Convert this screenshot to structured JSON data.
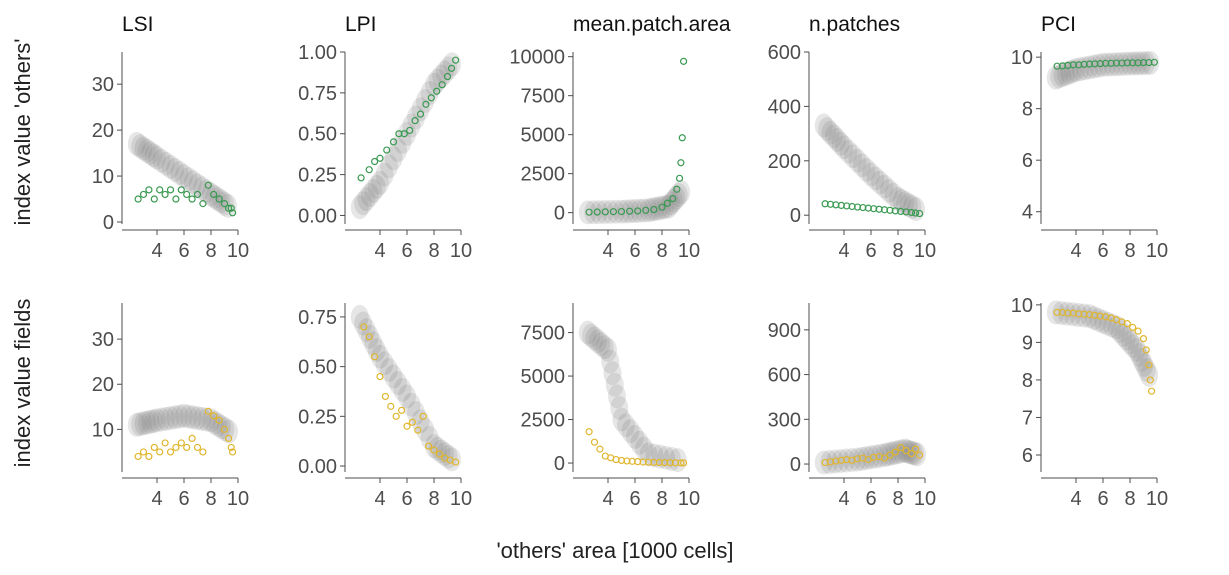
{
  "figure": {
    "x_axis_label": "'others' area [1000 cells]",
    "row_labels": [
      "index value 'others'",
      "index value fields"
    ],
    "colors": {
      "others": "#3a9a52",
      "fields": "#e0b62e",
      "density": "#000000",
      "axis": "#4d4d4d"
    }
  },
  "chart_data": [
    {
      "type": "scatter",
      "title": "LSI",
      "row": "others",
      "xlim": [
        2,
        10
      ],
      "ylim": [
        0,
        37
      ],
      "xticks": [
        4,
        6,
        8,
        10
      ],
      "yticks": [
        0,
        10,
        20,
        30
      ],
      "ytick_labels": [
        "0",
        "10",
        "20",
        "30"
      ],
      "density_ridge": [
        [
          2.5,
          17
        ],
        [
          4,
          14
        ],
        [
          6,
          10
        ],
        [
          8,
          6
        ],
        [
          9.5,
          3
        ]
      ],
      "points": [
        [
          2.6,
          5
        ],
        [
          3,
          6
        ],
        [
          3.4,
          7
        ],
        [
          3.8,
          5
        ],
        [
          4.2,
          7
        ],
        [
          4.6,
          6
        ],
        [
          5,
          7
        ],
        [
          5.4,
          5
        ],
        [
          5.8,
          7
        ],
        [
          6.2,
          6
        ],
        [
          6.6,
          5
        ],
        [
          7,
          6
        ],
        [
          7.4,
          4
        ],
        [
          7.8,
          8
        ],
        [
          8.2,
          6
        ],
        [
          8.6,
          5
        ],
        [
          9,
          4
        ],
        [
          9.3,
          3
        ],
        [
          9.5,
          3
        ],
        [
          9.6,
          2
        ]
      ]
    },
    {
      "type": "scatter",
      "title": "LPI",
      "row": "others",
      "xlim": [
        2,
        10
      ],
      "ylim": [
        -0.04,
        1
      ],
      "xticks": [
        4,
        6,
        8,
        10
      ],
      "yticks": [
        0,
        0.25,
        0.5,
        0.75,
        1
      ],
      "ytick_labels": [
        "0.00",
        "0.25",
        "0.50",
        "0.75",
        "1.00"
      ],
      "density_ridge": [
        [
          2.5,
          0.05
        ],
        [
          4,
          0.2
        ],
        [
          6,
          0.5
        ],
        [
          8,
          0.8
        ],
        [
          9.6,
          0.95
        ]
      ],
      "points": [
        [
          2.6,
          0.23
        ],
        [
          3.2,
          0.28
        ],
        [
          3.6,
          0.33
        ],
        [
          4,
          0.35
        ],
        [
          4.5,
          0.4
        ],
        [
          5,
          0.45
        ],
        [
          5.4,
          0.5
        ],
        [
          5.8,
          0.5
        ],
        [
          6.2,
          0.52
        ],
        [
          6.6,
          0.58
        ],
        [
          7,
          0.62
        ],
        [
          7.4,
          0.68
        ],
        [
          7.8,
          0.72
        ],
        [
          8.2,
          0.76
        ],
        [
          8.6,
          0.8
        ],
        [
          9,
          0.85
        ],
        [
          9.3,
          0.9
        ],
        [
          9.6,
          0.95
        ]
      ]
    },
    {
      "type": "scatter",
      "title": "mean.patch.area",
      "row": "others",
      "xlim": [
        2,
        10
      ],
      "ylim": [
        -600,
        10300
      ],
      "xticks": [
        4,
        6,
        8,
        10
      ],
      "yticks": [
        0,
        2500,
        5000,
        7500,
        10000
      ],
      "ytick_labels": [
        "0",
        "2500",
        "5000",
        "7500",
        "10000"
      ],
      "density_ridge": [
        [
          2.5,
          20
        ],
        [
          5,
          60
        ],
        [
          7,
          150
        ],
        [
          8.5,
          400
        ],
        [
          9.6,
          1500
        ]
      ],
      "points": [
        [
          2.6,
          30
        ],
        [
          3.2,
          40
        ],
        [
          3.8,
          50
        ],
        [
          4.4,
          60
        ],
        [
          5,
          70
        ],
        [
          5.6,
          90
        ],
        [
          6.2,
          110
        ],
        [
          6.8,
          150
        ],
        [
          7.4,
          200
        ],
        [
          8,
          350
        ],
        [
          8.4,
          600
        ],
        [
          8.8,
          900
        ],
        [
          9.1,
          1500
        ],
        [
          9.3,
          2200
        ],
        [
          9.4,
          3200
        ],
        [
          9.5,
          4800
        ],
        [
          9.6,
          9700
        ]
      ]
    },
    {
      "type": "scatter",
      "title": "n.patches",
      "row": "others",
      "xlim": [
        2,
        10
      ],
      "ylim": [
        -25,
        600
      ],
      "xticks": [
        4,
        6,
        8,
        10
      ],
      "yticks": [
        0,
        200,
        400,
        600
      ],
      "ytick_labels": [
        "0",
        "200",
        "400",
        "600"
      ],
      "density_ridge": [
        [
          2.5,
          330
        ],
        [
          4,
          250
        ],
        [
          6,
          150
        ],
        [
          8,
          60
        ],
        [
          9.6,
          15
        ]
      ],
      "points": [
        [
          2.6,
          42
        ],
        [
          3,
          40
        ],
        [
          3.4,
          38
        ],
        [
          3.8,
          36
        ],
        [
          4.2,
          34
        ],
        [
          4.6,
          32
        ],
        [
          5,
          30
        ],
        [
          5.4,
          28
        ],
        [
          5.8,
          26
        ],
        [
          6.2,
          24
        ],
        [
          6.6,
          22
        ],
        [
          7,
          20
        ],
        [
          7.4,
          18
        ],
        [
          7.8,
          16
        ],
        [
          8.2,
          14
        ],
        [
          8.6,
          12
        ],
        [
          9,
          10
        ],
        [
          9.3,
          8
        ],
        [
          9.6,
          6
        ]
      ]
    },
    {
      "type": "scatter",
      "title": "PCI",
      "row": "others",
      "xlim": [
        2,
        10
      ],
      "ylim": [
        3.6,
        10.2
      ],
      "xticks": [
        4,
        6,
        8,
        10
      ],
      "yticks": [
        4,
        6,
        8,
        10
      ],
      "ytick_labels": [
        "4",
        "6",
        "8",
        "10"
      ],
      "density_ridge": [
        [
          2.5,
          9.2
        ],
        [
          4,
          9.5
        ],
        [
          6,
          9.7
        ],
        [
          8,
          9.75
        ],
        [
          9.8,
          9.78
        ]
      ],
      "points": [
        [
          2.6,
          9.65
        ],
        [
          3,
          9.66
        ],
        [
          3.4,
          9.68
        ],
        [
          3.8,
          9.7
        ],
        [
          4.2,
          9.7
        ],
        [
          4.6,
          9.72
        ],
        [
          5,
          9.73
        ],
        [
          5.4,
          9.74
        ],
        [
          5.8,
          9.75
        ],
        [
          6.2,
          9.76
        ],
        [
          6.6,
          9.76
        ],
        [
          7,
          9.77
        ],
        [
          7.4,
          9.77
        ],
        [
          7.8,
          9.78
        ],
        [
          8.2,
          9.78
        ],
        [
          8.6,
          9.78
        ],
        [
          9,
          9.79
        ],
        [
          9.4,
          9.79
        ],
        [
          9.8,
          9.8
        ]
      ]
    },
    {
      "type": "scatter",
      "title": "",
      "row": "fields",
      "xlim": [
        2,
        10
      ],
      "ylim": [
        1,
        38
      ],
      "xticks": [
        4,
        6,
        8,
        10
      ],
      "yticks": [
        10,
        20,
        30
      ],
      "ytick_labels": [
        "10",
        "20",
        "30"
      ],
      "density_ridge": [
        [
          2.5,
          11
        ],
        [
          4,
          12
        ],
        [
          6,
          13
        ],
        [
          8,
          12
        ],
        [
          9.6,
          9
        ]
      ],
      "points": [
        [
          2.6,
          4
        ],
        [
          3,
          5
        ],
        [
          3.4,
          4
        ],
        [
          3.8,
          6
        ],
        [
          4.2,
          5
        ],
        [
          4.6,
          7
        ],
        [
          5,
          5
        ],
        [
          5.4,
          6
        ],
        [
          5.8,
          7
        ],
        [
          6.2,
          6
        ],
        [
          6.6,
          8
        ],
        [
          7,
          6
        ],
        [
          7.4,
          5
        ],
        [
          7.8,
          14
        ],
        [
          8.2,
          13
        ],
        [
          8.6,
          12
        ],
        [
          9,
          10
        ],
        [
          9.3,
          8
        ],
        [
          9.5,
          6
        ],
        [
          9.6,
          5
        ]
      ]
    },
    {
      "type": "scatter",
      "title": "",
      "row": "fields",
      "xlim": [
        2,
        10
      ],
      "ylim": [
        -0.02,
        0.82
      ],
      "xticks": [
        4,
        6,
        8,
        10
      ],
      "yticks": [
        0,
        0.25,
        0.5,
        0.75
      ],
      "ytick_labels": [
        "0.00",
        "0.25",
        "0.50",
        "0.75"
      ],
      "density_ridge": [
        [
          2.5,
          0.75
        ],
        [
          4,
          0.55
        ],
        [
          6,
          0.35
        ],
        [
          8,
          0.1
        ],
        [
          9.6,
          0.02
        ]
      ],
      "points": [
        [
          2.8,
          0.7
        ],
        [
          3.2,
          0.65
        ],
        [
          3.6,
          0.55
        ],
        [
          4,
          0.45
        ],
        [
          4.4,
          0.35
        ],
        [
          4.8,
          0.3
        ],
        [
          5.2,
          0.25
        ],
        [
          5.6,
          0.28
        ],
        [
          6,
          0.2
        ],
        [
          6.4,
          0.22
        ],
        [
          6.8,
          0.18
        ],
        [
          7.2,
          0.25
        ],
        [
          7.6,
          0.1
        ],
        [
          8,
          0.08
        ],
        [
          8.4,
          0.06
        ],
        [
          8.8,
          0.04
        ],
        [
          9.2,
          0.03
        ],
        [
          9.6,
          0.02
        ]
      ]
    },
    {
      "type": "scatter",
      "title": "",
      "row": "fields",
      "xlim": [
        2,
        10
      ],
      "ylim": [
        -400,
        9200
      ],
      "xticks": [
        4,
        6,
        8,
        10
      ],
      "yticks": [
        0,
        2500,
        5000,
        7500
      ],
      "ytick_labels": [
        "0",
        "2500",
        "5000",
        "7500"
      ],
      "density_ridge": [
        [
          2.5,
          7500
        ],
        [
          4,
          6500
        ],
        [
          5,
          2500
        ],
        [
          7,
          500
        ],
        [
          9.6,
          100
        ]
      ],
      "points": [
        [
          2.6,
          1800
        ],
        [
          3,
          1200
        ],
        [
          3.4,
          800
        ],
        [
          3.8,
          400
        ],
        [
          4.2,
          300
        ],
        [
          4.6,
          200
        ],
        [
          5,
          150
        ],
        [
          5.4,
          120
        ],
        [
          5.8,
          100
        ],
        [
          6.2,
          80
        ],
        [
          6.6,
          60
        ],
        [
          7,
          50
        ],
        [
          7.4,
          40
        ],
        [
          7.8,
          30
        ],
        [
          8.2,
          25
        ],
        [
          8.6,
          20
        ],
        [
          9,
          15
        ],
        [
          9.4,
          10
        ],
        [
          9.6,
          5
        ]
      ]
    },
    {
      "type": "scatter",
      "title": "",
      "row": "fields",
      "xlim": [
        2,
        10
      ],
      "ylim": [
        -40,
        1080
      ],
      "xticks": [
        4,
        6,
        8,
        10
      ],
      "yticks": [
        0,
        300,
        600,
        900
      ],
      "ytick_labels": [
        "0",
        "300",
        "600",
        "900"
      ],
      "density_ridge": [
        [
          2.5,
          10
        ],
        [
          5,
          30
        ],
        [
          7,
          60
        ],
        [
          8.5,
          90
        ],
        [
          9.6,
          60
        ]
      ],
      "points": [
        [
          2.6,
          10
        ],
        [
          3,
          15
        ],
        [
          3.4,
          20
        ],
        [
          3.8,
          25
        ],
        [
          4.2,
          30
        ],
        [
          4.6,
          25
        ],
        [
          5,
          35
        ],
        [
          5.4,
          40
        ],
        [
          5.8,
          30
        ],
        [
          6.2,
          45
        ],
        [
          6.6,
          50
        ],
        [
          7,
          40
        ],
        [
          7.4,
          60
        ],
        [
          7.8,
          80
        ],
        [
          8.2,
          110
        ],
        [
          8.6,
          90
        ],
        [
          9,
          70
        ],
        [
          9.3,
          100
        ],
        [
          9.6,
          60
        ]
      ]
    },
    {
      "type": "scatter",
      "title": "",
      "row": "fields",
      "xlim": [
        2,
        10
      ],
      "ylim": [
        5.6,
        10.05
      ],
      "xticks": [
        4,
        6,
        8,
        10
      ],
      "yticks": [
        6,
        7,
        8,
        9,
        10
      ],
      "ytick_labels": [
        "6",
        "7",
        "8",
        "9",
        "10"
      ],
      "density_ridge": [
        [
          2.5,
          9.8
        ],
        [
          5,
          9.7
        ],
        [
          7,
          9.4
        ],
        [
          8.5,
          8.8
        ],
        [
          9.6,
          8
        ]
      ],
      "points": [
        [
          2.6,
          9.8
        ],
        [
          3,
          9.8
        ],
        [
          3.4,
          9.78
        ],
        [
          3.8,
          9.78
        ],
        [
          4.2,
          9.76
        ],
        [
          4.6,
          9.75
        ],
        [
          5,
          9.74
        ],
        [
          5.4,
          9.72
        ],
        [
          5.8,
          9.7
        ],
        [
          6.2,
          9.68
        ],
        [
          6.6,
          9.65
        ],
        [
          7,
          9.6
        ],
        [
          7.4,
          9.55
        ],
        [
          7.8,
          9.5
        ],
        [
          8.2,
          9.4
        ],
        [
          8.6,
          9.3
        ],
        [
          9,
          9.1
        ],
        [
          9.2,
          8.8
        ],
        [
          9.4,
          8.4
        ],
        [
          9.5,
          8
        ],
        [
          9.6,
          7.7
        ]
      ]
    }
  ]
}
